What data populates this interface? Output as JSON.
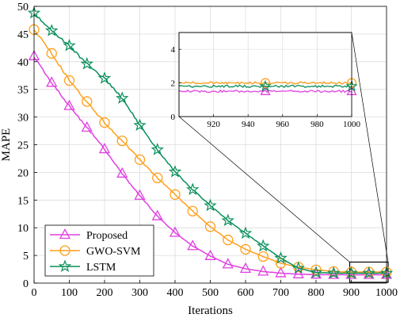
{
  "chart_data": {
    "type": "line",
    "title": "",
    "xlabel": "Iterations",
    "ylabel": "MAPE",
    "xlim": [
      0,
      1000
    ],
    "ylim": [
      0,
      50
    ],
    "xticks": [
      0,
      100,
      200,
      300,
      400,
      500,
      600,
      700,
      800,
      900,
      1000
    ],
    "yticks": [
      0,
      5,
      10,
      15,
      20,
      25,
      30,
      35,
      40,
      45,
      50
    ],
    "grid": true,
    "legend_position": "bottom-left",
    "series": [
      {
        "name": "Proposed",
        "color": "#e040e0",
        "marker": "triangle",
        "x": [
          0,
          50,
          100,
          150,
          200,
          250,
          300,
          350,
          400,
          450,
          500,
          550,
          600,
          650,
          700,
          750,
          800,
          850,
          900,
          950,
          1000
        ],
        "values": [
          41.0,
          36.2,
          32.0,
          28.1,
          24.2,
          19.8,
          15.8,
          12.1,
          9.1,
          6.7,
          4.9,
          3.4,
          2.6,
          2.1,
          1.8,
          1.6,
          1.55,
          1.5,
          1.5,
          1.5,
          1.5
        ]
      },
      {
        "name": "GWO-SVM",
        "color": "#ff9f1a",
        "marker": "circle",
        "x": [
          0,
          50,
          100,
          150,
          200,
          250,
          300,
          350,
          400,
          450,
          500,
          550,
          600,
          650,
          700,
          750,
          800,
          850,
          900,
          950,
          1000
        ],
        "values": [
          45.8,
          41.5,
          36.6,
          32.8,
          29.0,
          25.7,
          22.3,
          19.0,
          16.0,
          13.0,
          10.2,
          7.8,
          6.1,
          4.8,
          3.6,
          2.9,
          2.4,
          2.1,
          2.0,
          2.0,
          2.0
        ]
      },
      {
        "name": "LSTM",
        "color": "#0a8f5a",
        "marker": "star",
        "x": [
          0,
          50,
          100,
          150,
          200,
          250,
          300,
          350,
          400,
          450,
          500,
          550,
          600,
          650,
          700,
          750,
          800,
          850,
          900,
          950,
          1000
        ],
        "values": [
          48.8,
          45.6,
          42.9,
          39.6,
          37.0,
          33.4,
          28.5,
          24.1,
          20.1,
          16.9,
          14.0,
          11.3,
          9.0,
          6.7,
          4.5,
          2.7,
          1.9,
          1.8,
          1.8,
          1.8,
          1.8
        ]
      }
    ],
    "inset": {
      "xlim": [
        900,
        1000
      ],
      "ylim": [
        0,
        5
      ],
      "xticks": [
        920,
        940,
        960,
        980,
        1000
      ],
      "yticks": [
        0,
        2,
        4
      ],
      "marker_x": [
        950,
        1000
      ]
    }
  }
}
